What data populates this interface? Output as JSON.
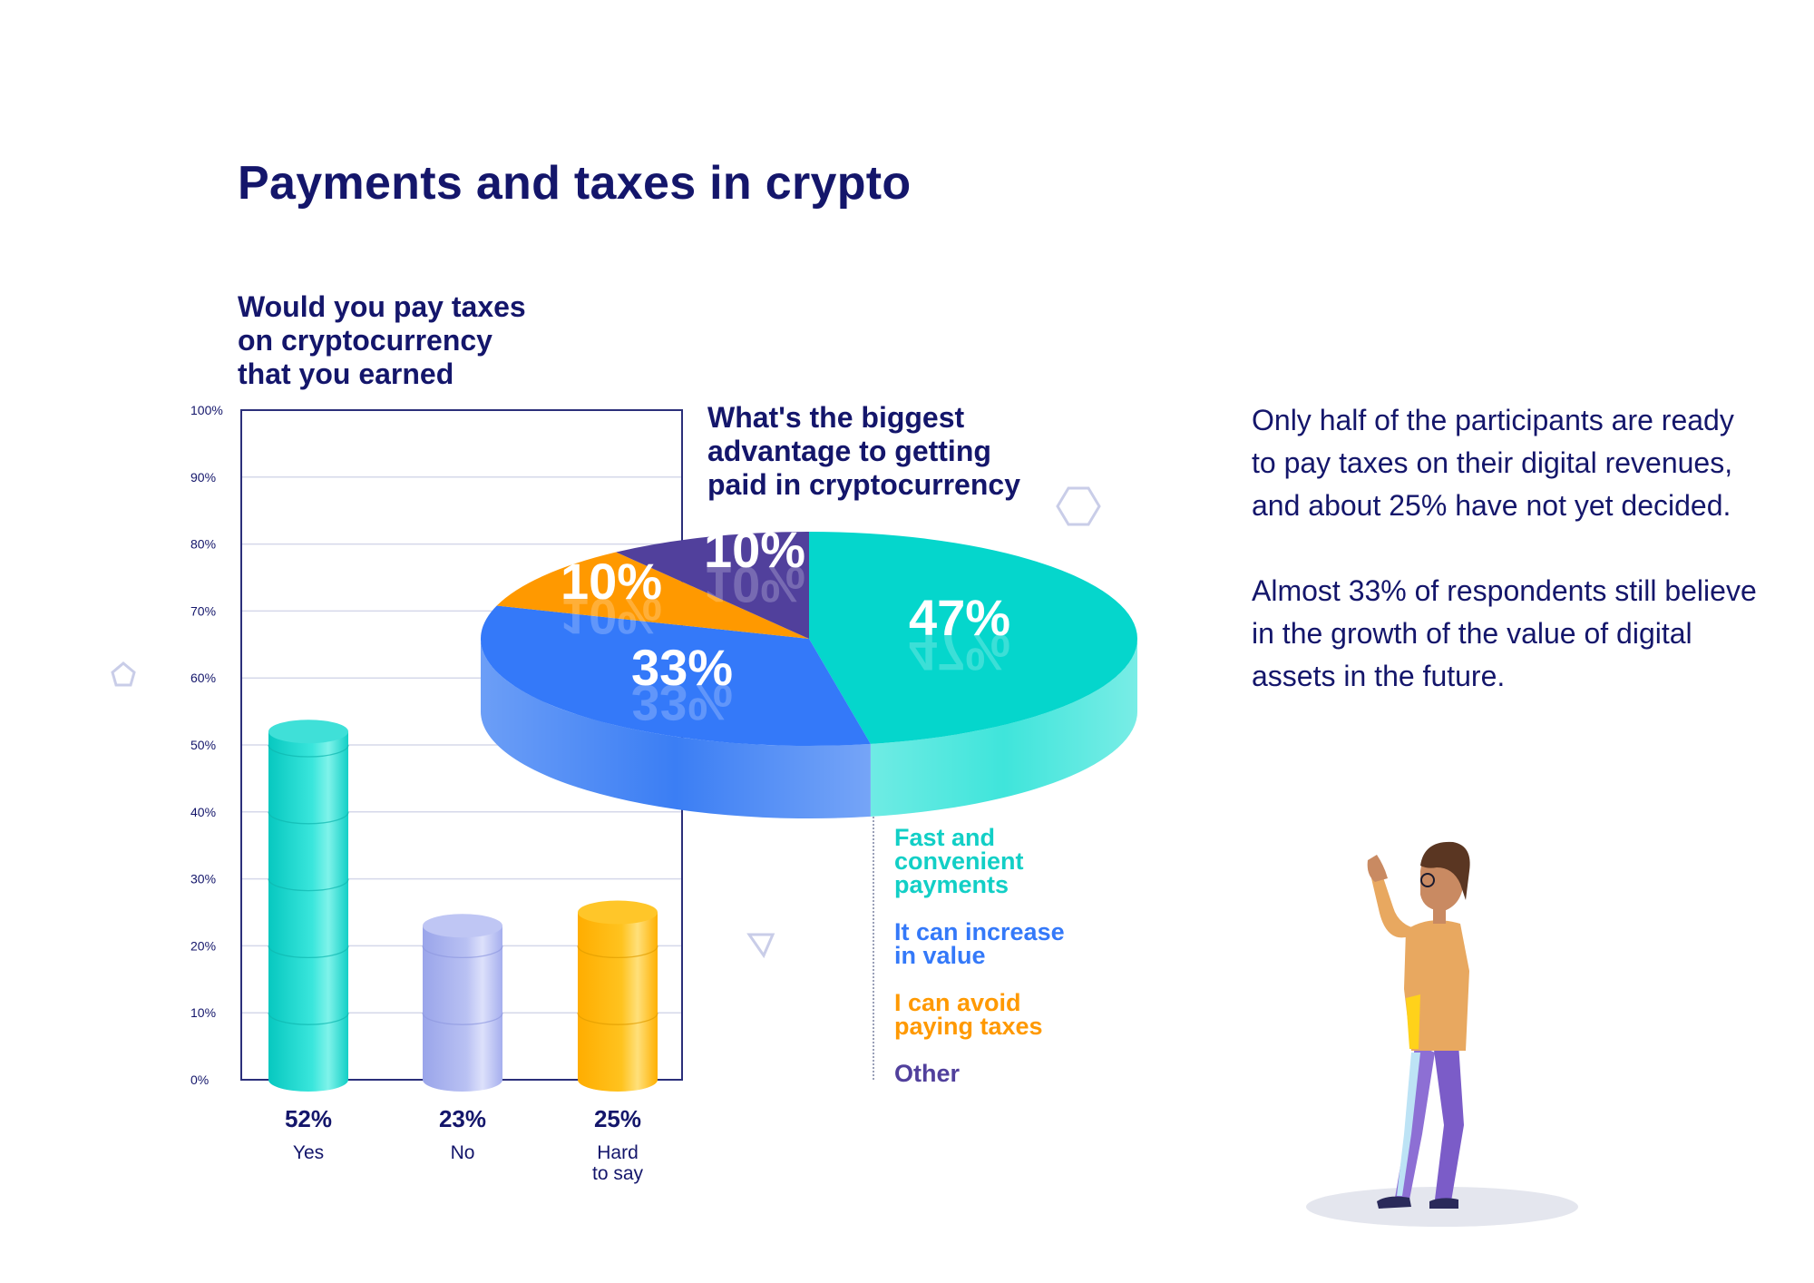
{
  "title": "Payments and taxes in crypto",
  "summary": [
    "Only half of the participants are ready to pay taxes on their digital revenues, and about 25% have not yet decided.",
    "Almost 33% of respondents still believe in the growth of the value of digital assets in the future."
  ],
  "chart_data": [
    {
      "type": "bar",
      "title_lines": [
        "Would you pay taxes",
        "on cryptocurrency",
        "that you earned"
      ],
      "categories": [
        "Yes",
        "No",
        "Hard to say"
      ],
      "category_lines": [
        [
          "Yes"
        ],
        [
          "No"
        ],
        [
          "Hard",
          "to say"
        ]
      ],
      "values": [
        52,
        23,
        25
      ],
      "value_labels": [
        "52%",
        "23%",
        "25%"
      ],
      "ylim": [
        0,
        100
      ],
      "yticks": [
        "0%",
        "10%",
        "20%",
        "30%",
        "40%",
        "50%",
        "60%",
        "70%",
        "80%",
        "90%",
        "100%"
      ],
      "colors": [
        "#1fd6cc",
        "#aab4ef",
        "#ffb400"
      ],
      "grid": true
    },
    {
      "type": "pie",
      "title_lines": [
        "What's the biggest",
        "advantage to getting",
        "paid in cryptocurrency"
      ],
      "labels": [
        "Fast and convenient payments",
        "It can increase in value",
        "I can avoid paying taxes",
        "Other"
      ],
      "legend_lines": [
        [
          "Fast and",
          "convenient",
          "payments"
        ],
        [
          "It can increase",
          "in value"
        ],
        [
          "I can avoid",
          "paying taxes"
        ],
        [
          "Other"
        ]
      ],
      "values": [
        47,
        33,
        10,
        10
      ],
      "value_labels": [
        "47%",
        "33%",
        "10%",
        "10%"
      ],
      "colors": [
        "#05d6cc",
        "#3479f9",
        "#ff9900",
        "#51409c"
      ],
      "side_colors": [
        "#3fe5db",
        "#3b7ef4",
        "#e68600",
        "#3f3188"
      ],
      "legend_placement": "bottom"
    }
  ]
}
